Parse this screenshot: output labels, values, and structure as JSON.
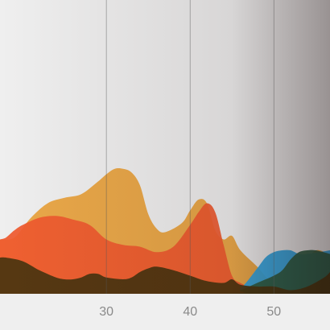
{
  "chart_data": {
    "type": "area",
    "title": "",
    "xlabel": "",
    "ylabel": "",
    "xlim": [
      17.3,
      56.7
    ],
    "ylim": [
      0,
      100
    ],
    "x_ticks": [
      30,
      40,
      50
    ],
    "x_tick_labels": [
      "30",
      "40",
      "50"
    ],
    "grid": {
      "vertical": true,
      "horizontal": false
    },
    "legend": "none",
    "stacked": false,
    "series": [
      {
        "color": "#e9a23b",
        "points": [
          [
            17.3,
            30
          ],
          [
            19,
            31
          ],
          [
            21,
            42
          ],
          [
            23,
            50
          ],
          [
            25,
            53
          ],
          [
            27,
            55
          ],
          [
            29,
            62
          ],
          [
            30,
            66
          ],
          [
            31,
            69
          ],
          [
            32,
            69
          ],
          [
            33,
            67
          ],
          [
            34,
            60
          ],
          [
            35,
            44
          ],
          [
            36,
            36
          ],
          [
            37,
            34
          ],
          [
            39,
            39
          ],
          [
            40,
            46
          ],
          [
            41,
            52
          ],
          [
            42,
            50
          ],
          [
            43,
            35
          ],
          [
            44,
            30
          ],
          [
            45,
            32
          ],
          [
            46,
            24
          ],
          [
            48,
            15
          ],
          [
            50,
            5
          ],
          [
            52,
            4
          ],
          [
            54,
            18
          ],
          [
            55,
            24
          ],
          [
            56.7,
            22
          ]
        ]
      },
      {
        "color": "#ef5a2f",
        "points": [
          [
            17.3,
            30
          ],
          [
            18,
            31
          ],
          [
            19,
            35
          ],
          [
            20,
            38
          ],
          [
            22,
            42
          ],
          [
            24,
            43
          ],
          [
            26,
            41
          ],
          [
            28,
            38
          ],
          [
            30,
            30
          ],
          [
            32,
            27
          ],
          [
            34,
            26
          ],
          [
            36,
            23
          ],
          [
            38,
            26
          ],
          [
            40,
            38
          ],
          [
            41,
            45
          ],
          [
            42,
            50
          ],
          [
            43,
            45
          ],
          [
            44,
            27
          ],
          [
            45,
            10
          ],
          [
            46,
            6
          ],
          [
            48,
            2
          ],
          [
            50,
            0
          ],
          [
            54,
            0
          ],
          [
            56.7,
            0
          ]
        ]
      },
      {
        "color": "#2fa5e1",
        "points": [
          [
            17.3,
            0
          ],
          [
            44,
            0
          ],
          [
            46,
            3
          ],
          [
            48,
            14
          ],
          [
            49,
            20
          ],
          [
            50,
            23
          ],
          [
            51,
            24
          ],
          [
            52,
            24
          ],
          [
            53,
            22
          ],
          [
            54,
            22
          ],
          [
            56.7,
            24
          ]
        ]
      },
      {
        "color": "#2e5e44",
        "points": [
          [
            17.3,
            0
          ],
          [
            44,
            0
          ],
          [
            46,
            2
          ],
          [
            48,
            6
          ],
          [
            50,
            10
          ],
          [
            51,
            13
          ],
          [
            52,
            19
          ],
          [
            53,
            23
          ],
          [
            54,
            24
          ],
          [
            55,
            24
          ],
          [
            56.7,
            22
          ]
        ]
      },
      {
        "color": "#4a3510",
        "points": [
          [
            17.3,
            20
          ],
          [
            18,
            20
          ],
          [
            20,
            18
          ],
          [
            22,
            13
          ],
          [
            24,
            9
          ],
          [
            25,
            8
          ],
          [
            26,
            8
          ],
          [
            27,
            9
          ],
          [
            28,
            11
          ],
          [
            29,
            11
          ],
          [
            30,
            9
          ],
          [
            32,
            8
          ],
          [
            33,
            9
          ],
          [
            34,
            12
          ],
          [
            35,
            14
          ],
          [
            36,
            15
          ],
          [
            38,
            13
          ],
          [
            40,
            10
          ],
          [
            42,
            7
          ],
          [
            44,
            6
          ],
          [
            45,
            8
          ],
          [
            46,
            5
          ],
          [
            48,
            4
          ],
          [
            50,
            4
          ],
          [
            52,
            2
          ],
          [
            54,
            4
          ],
          [
            56,
            9
          ],
          [
            56.7,
            12
          ]
        ]
      }
    ]
  }
}
